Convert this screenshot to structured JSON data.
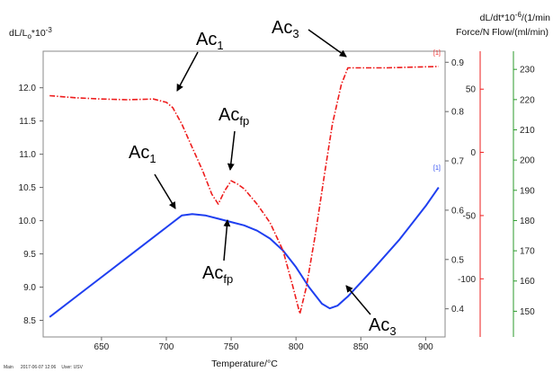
{
  "chart_data": {
    "type": "line",
    "xlabel": "Temperature/°C",
    "ylabel_left": "dL/L",
    "ylabel_left_sub": "o",
    "ylabel_left_tail": "*10",
    "ylabel_left_exp": "-3",
    "ylabel_right1_line1": "dL/dt*10",
    "ylabel_right1_exp": "-6",
    "ylabel_right1_tail": "/(1/min",
    "ylabel_right2": "Force/N",
    "ylabel_right3": "Flow/(ml/min)",
    "xlim": [
      605,
      915
    ],
    "ylim_left": [
      8.25,
      12.55
    ],
    "ylim_right1": [
      0.3429,
      0.9224
    ],
    "ylim_right2": [
      -146,
      80
    ],
    "ylim_right3": [
      141.5,
      236
    ],
    "x_ticks": [
      650,
      700,
      750,
      800,
      850,
      900
    ],
    "y_left_ticks": [
      8.5,
      9.0,
      9.5,
      10.0,
      10.5,
      11.0,
      11.5,
      12.0
    ],
    "y_right1_ticks": [
      0.4,
      0.5,
      0.6,
      0.7,
      0.8,
      0.9
    ],
    "y_right2_ticks": [
      -100,
      -50,
      0,
      50
    ],
    "y_right3_ticks": [
      150,
      160,
      170,
      180,
      190,
      200,
      210,
      220,
      230
    ],
    "series": [
      {
        "color": "#1f3ff0",
        "style": "solid",
        "axis": "left",
        "points": [
          [
            610,
            8.55
          ],
          [
            640,
            9.0
          ],
          [
            670,
            9.45
          ],
          [
            700,
            9.9
          ],
          [
            712,
            10.08
          ],
          [
            720,
            10.1
          ],
          [
            730,
            10.08
          ],
          [
            740,
            10.03
          ],
          [
            750,
            9.98
          ],
          [
            760,
            9.93
          ],
          [
            770,
            9.85
          ],
          [
            780,
            9.73
          ],
          [
            790,
            9.55
          ],
          [
            800,
            9.3
          ],
          [
            810,
            9.0
          ],
          [
            820,
            8.75
          ],
          [
            826,
            8.68
          ],
          [
            832,
            8.72
          ],
          [
            840,
            8.86
          ],
          [
            860,
            9.28
          ],
          [
            880,
            9.72
          ],
          [
            900,
            10.22
          ],
          [
            910,
            10.5
          ]
        ]
      },
      {
        "color": "#ee1c1c",
        "style": "dashdot",
        "axis": "left",
        "points": [
          [
            610,
            11.88
          ],
          [
            630,
            11.85
          ],
          [
            650,
            11.83
          ],
          [
            670,
            11.82
          ],
          [
            690,
            11.83
          ],
          [
            700,
            11.78
          ],
          [
            705,
            11.7
          ],
          [
            712,
            11.45
          ],
          [
            720,
            11.1
          ],
          [
            728,
            10.75
          ],
          [
            735,
            10.4
          ],
          [
            740,
            10.25
          ],
          [
            745,
            10.45
          ],
          [
            750,
            10.6
          ],
          [
            755,
            10.55
          ],
          [
            760,
            10.48
          ],
          [
            770,
            10.25
          ],
          [
            780,
            9.97
          ],
          [
            790,
            9.55
          ],
          [
            797,
            9.05
          ],
          [
            803,
            8.6
          ],
          [
            808,
            9.0
          ],
          [
            815,
            9.8
          ],
          [
            822,
            10.7
          ],
          [
            828,
            11.45
          ],
          [
            835,
            12.05
          ],
          [
            840,
            12.3
          ],
          [
            850,
            12.3
          ],
          [
            870,
            12.3
          ],
          [
            890,
            12.31
          ],
          [
            910,
            12.32
          ]
        ]
      }
    ],
    "annotations": [
      {
        "base": "Ac",
        "sub": "1"
      },
      {
        "base": "Ac",
        "sub": "3"
      },
      {
        "base": "Ac",
        "sub": "fp"
      },
      {
        "base": "Ac",
        "sub": "1"
      },
      {
        "base": "Ac",
        "sub": "fp"
      },
      {
        "base": "Ac",
        "sub": "3"
      }
    ],
    "curve_markers": [
      "[1]",
      "[1]"
    ],
    "footer": [
      "Main",
      "2017-06-07 12:06",
      "User: USV"
    ]
  }
}
